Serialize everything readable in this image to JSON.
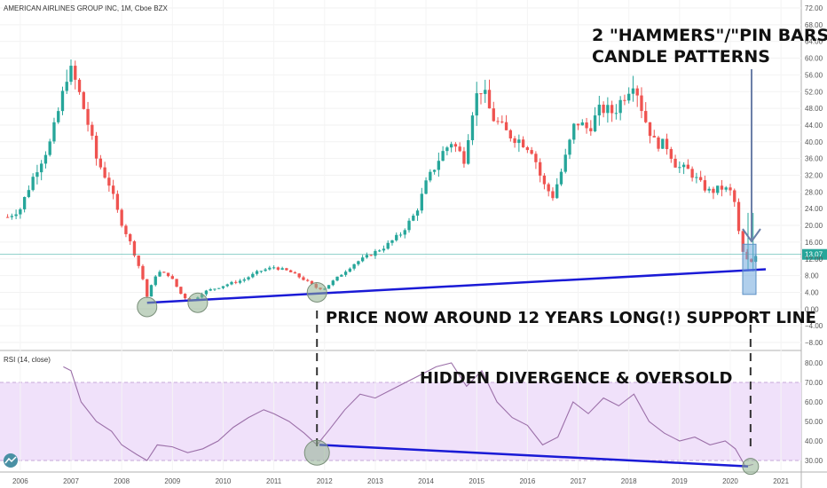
{
  "header": {
    "symbol_title": "AMERICAN AIRLINES GROUP INC, 1M, Cboe BZX",
    "rsi_title": "RSI (14, close)"
  },
  "colors": {
    "up": "#26a69a",
    "down": "#ef5350",
    "support_line": "#1a1ad6",
    "rsi_line": "#9b6fa8",
    "rsi_band": "#f0e1fa",
    "price_tag": "#26a69a",
    "marker_circle": "#8fb08f"
  },
  "annotations": {
    "hammers_line1": "2 \"HAMMERS\"/\"PIN BARS\"",
    "hammers_line2": "CANDLE PATTERNS",
    "support": "PRICE NOW AROUND 12 YEARS LONG(!) SUPPORT LINE",
    "divergence": "HIDDEN DIVERGENCE & OVERSOLD"
  },
  "chart_data": {
    "type": "candlestick",
    "title": "AMERICAN AIRLINES GROUP INC, 1M, Cboe BZX",
    "price_axis": {
      "range": [
        -8,
        72
      ],
      "ticks": [
        "72.00",
        "68.00",
        "64.00",
        "60.00",
        "56.00",
        "52.00",
        "48.00",
        "44.00",
        "40.00",
        "36.00",
        "32.00",
        "28.00",
        "24.00",
        "20.00",
        "16.00",
        "12.00",
        "8.00",
        "4.00",
        "0.00",
        "−4.00",
        "−8.00"
      ],
      "last_price": "13.07"
    },
    "rsi_axis": {
      "range": [
        25,
        85
      ],
      "ticks": [
        "80.00",
        "70.00",
        "60.00",
        "50.00",
        "40.00",
        "30.00"
      ],
      "overbought": 70,
      "oversold": 30
    },
    "x_axis": {
      "range": [
        2005.6,
        2021.4
      ],
      "ticks": [
        "2006",
        "2007",
        "2008",
        "2009",
        "2010",
        "2011",
        "2012",
        "2013",
        "2014",
        "2015",
        "2016",
        "2017",
        "2018",
        "2019",
        "2020",
        "2021"
      ]
    },
    "price_series": [
      {
        "t": 2005.75,
        "c": 22
      },
      {
        "t": 2006.0,
        "c": 24
      },
      {
        "t": 2006.3,
        "c": 33
      },
      {
        "t": 2006.6,
        "c": 40
      },
      {
        "t": 2006.85,
        "c": 52
      },
      {
        "t": 2006.95,
        "c": 58
      },
      {
        "t": 2007.1,
        "c": 54
      },
      {
        "t": 2007.3,
        "c": 46
      },
      {
        "t": 2007.5,
        "c": 36
      },
      {
        "t": 2007.75,
        "c": 30
      },
      {
        "t": 2007.95,
        "c": 22
      },
      {
        "t": 2008.2,
        "c": 15
      },
      {
        "t": 2008.4,
        "c": 8
      },
      {
        "t": 2008.5,
        "c": 3
      },
      {
        "t": 2008.7,
        "c": 9
      },
      {
        "t": 2008.95,
        "c": 8
      },
      {
        "t": 2009.2,
        "c": 3
      },
      {
        "t": 2009.4,
        "c": 2
      },
      {
        "t": 2009.6,
        "c": 4
      },
      {
        "t": 2009.85,
        "c": 5
      },
      {
        "t": 2010.1,
        "c": 6
      },
      {
        "t": 2010.4,
        "c": 7
      },
      {
        "t": 2010.7,
        "c": 9
      },
      {
        "t": 2011.0,
        "c": 10
      },
      {
        "t": 2011.3,
        "c": 9
      },
      {
        "t": 2011.6,
        "c": 7
      },
      {
        "t": 2011.85,
        "c": 5
      },
      {
        "t": 2012.0,
        "c": 5
      },
      {
        "t": 2012.3,
        "c": 8
      },
      {
        "t": 2012.6,
        "c": 11
      },
      {
        "t": 2012.9,
        "c": 13
      },
      {
        "t": 2013.2,
        "c": 15
      },
      {
        "t": 2013.5,
        "c": 18
      },
      {
        "t": 2013.8,
        "c": 23
      },
      {
        "t": 2014.0,
        "c": 30
      },
      {
        "t": 2014.3,
        "c": 37
      },
      {
        "t": 2014.5,
        "c": 40
      },
      {
        "t": 2014.75,
        "c": 36
      },
      {
        "t": 2014.95,
        "c": 50
      },
      {
        "t": 2015.1,
        "c": 53
      },
      {
        "t": 2015.3,
        "c": 46
      },
      {
        "t": 2015.6,
        "c": 42
      },
      {
        "t": 2015.9,
        "c": 40
      },
      {
        "t": 2016.1,
        "c": 38
      },
      {
        "t": 2016.3,
        "c": 30
      },
      {
        "t": 2016.5,
        "c": 27
      },
      {
        "t": 2016.7,
        "c": 34
      },
      {
        "t": 2016.95,
        "c": 45
      },
      {
        "t": 2017.2,
        "c": 43
      },
      {
        "t": 2017.45,
        "c": 48
      },
      {
        "t": 2017.7,
        "c": 47
      },
      {
        "t": 2017.95,
        "c": 52
      },
      {
        "t": 2018.1,
        "c": 55
      },
      {
        "t": 2018.3,
        "c": 46
      },
      {
        "t": 2018.5,
        "c": 40
      },
      {
        "t": 2018.75,
        "c": 39
      },
      {
        "t": 2018.95,
        "c": 34
      },
      {
        "t": 2019.2,
        "c": 33
      },
      {
        "t": 2019.4,
        "c": 30
      },
      {
        "t": 2019.6,
        "c": 28
      },
      {
        "t": 2019.85,
        "c": 29
      },
      {
        "t": 2020.0,
        "c": 28
      },
      {
        "t": 2020.1,
        "c": 25
      },
      {
        "t": 2020.2,
        "c": 15
      },
      {
        "t": 2020.3,
        "c": 12
      },
      {
        "t": 2020.4,
        "c": 11
      },
      {
        "t": 2020.5,
        "c": 13
      }
    ],
    "rsi_series": [
      {
        "t": 2006.85,
        "v": 78
      },
      {
        "t": 2007.0,
        "v": 76
      },
      {
        "t": 2007.2,
        "v": 60
      },
      {
        "t": 2007.5,
        "v": 50
      },
      {
        "t": 2007.8,
        "v": 45
      },
      {
        "t": 2008.0,
        "v": 38
      },
      {
        "t": 2008.3,
        "v": 33
      },
      {
        "t": 2008.5,
        "v": 30
      },
      {
        "t": 2008.7,
        "v": 38
      },
      {
        "t": 2009.0,
        "v": 37
      },
      {
        "t": 2009.3,
        "v": 34
      },
      {
        "t": 2009.6,
        "v": 36
      },
      {
        "t": 2009.9,
        "v": 40
      },
      {
        "t": 2010.2,
        "v": 47
      },
      {
        "t": 2010.5,
        "v": 52
      },
      {
        "t": 2010.8,
        "v": 56
      },
      {
        "t": 2011.0,
        "v": 54
      },
      {
        "t": 2011.3,
        "v": 50
      },
      {
        "t": 2011.6,
        "v": 44
      },
      {
        "t": 2011.85,
        "v": 38
      },
      {
        "t": 2012.1,
        "v": 46
      },
      {
        "t": 2012.4,
        "v": 56
      },
      {
        "t": 2012.7,
        "v": 64
      },
      {
        "t": 2013.0,
        "v": 62
      },
      {
        "t": 2013.3,
        "v": 66
      },
      {
        "t": 2013.6,
        "v": 70
      },
      {
        "t": 2013.9,
        "v": 74
      },
      {
        "t": 2014.2,
        "v": 78
      },
      {
        "t": 2014.5,
        "v": 80
      },
      {
        "t": 2014.8,
        "v": 68
      },
      {
        "t": 2015.1,
        "v": 76
      },
      {
        "t": 2015.4,
        "v": 60
      },
      {
        "t": 2015.7,
        "v": 52
      },
      {
        "t": 2016.0,
        "v": 48
      },
      {
        "t": 2016.3,
        "v": 38
      },
      {
        "t": 2016.6,
        "v": 42
      },
      {
        "t": 2016.9,
        "v": 60
      },
      {
        "t": 2017.2,
        "v": 54
      },
      {
        "t": 2017.5,
        "v": 62
      },
      {
        "t": 2017.8,
        "v": 58
      },
      {
        "t": 2018.1,
        "v": 64
      },
      {
        "t": 2018.4,
        "v": 50
      },
      {
        "t": 2018.7,
        "v": 44
      },
      {
        "t": 2019.0,
        "v": 40
      },
      {
        "t": 2019.3,
        "v": 42
      },
      {
        "t": 2019.6,
        "v": 38
      },
      {
        "t": 2019.9,
        "v": 40
      },
      {
        "t": 2020.1,
        "v": 36
      },
      {
        "t": 2020.3,
        "v": 27
      },
      {
        "t": 2020.45,
        "v": 28
      }
    ],
    "support_line": {
      "start": {
        "t": 2008.5,
        "price": 1.5
      },
      "end": {
        "t": 2020.7,
        "price": 9.5
      }
    },
    "rsi_divergence_line": {
      "start": {
        "t": 2011.9,
        "rsi": 38
      },
      "end": {
        "t": 2020.35,
        "rsi": 27
      }
    },
    "price_markers": [
      {
        "t": 2008.5,
        "price": 0.5
      },
      {
        "t": 2009.5,
        "price": 1.5
      },
      {
        "t": 2011.85,
        "price": 4.0
      }
    ],
    "rsi_markers": [
      {
        "t": 2011.85,
        "rsi": 34
      },
      {
        "t": 2020.4,
        "rsi": 27
      }
    ],
    "dashed_verticals": [
      2011.85,
      2020.4
    ]
  }
}
